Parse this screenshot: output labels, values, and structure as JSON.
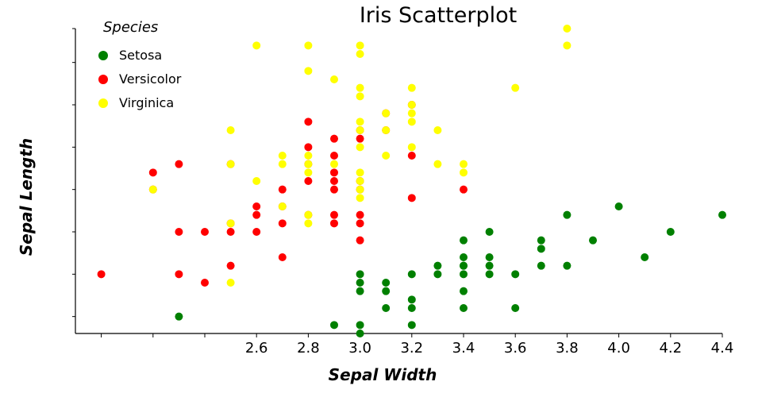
{
  "chart_data": {
    "type": "scatter",
    "title": "Iris Scatterplot",
    "xlabel": "Sepal Width",
    "ylabel": "Sepal Length",
    "xlim": [
      1.9,
      4.4
    ],
    "ylim": [
      4.3,
      7.9
    ],
    "x_ticks": [
      2.0,
      2.2,
      2.4,
      2.6,
      2.8,
      3.0,
      3.2,
      3.4,
      3.6,
      3.8,
      4.0,
      4.2,
      4.4
    ],
    "x_tick_labels": [
      "",
      "",
      "",
      "2.6",
      "2.8",
      "3.0",
      "3.2",
      "3.4",
      "3.6",
      "3.8",
      "4.0",
      "4.2",
      "4.4"
    ],
    "y_ticks": [
      4.5,
      5.0,
      5.5,
      6.0,
      6.5,
      7.0,
      7.5
    ],
    "grid": false,
    "legend": {
      "title": "Species",
      "placement": "top-left"
    },
    "series": [
      {
        "name": "Setosa",
        "color": "#008000",
        "points": [
          [
            2.3,
            4.5
          ],
          [
            2.9,
            4.4
          ],
          [
            3.0,
            4.4
          ],
          [
            3.0,
            4.3
          ],
          [
            3.2,
            4.4
          ],
          [
            3.1,
            4.6
          ],
          [
            3.2,
            4.6
          ],
          [
            3.2,
            4.7
          ],
          [
            3.4,
            4.6
          ],
          [
            3.6,
            4.6
          ],
          [
            3.0,
            4.8
          ],
          [
            3.1,
            4.8
          ],
          [
            3.4,
            4.8
          ],
          [
            3.0,
            4.9
          ],
          [
            3.1,
            4.9
          ],
          [
            3.6,
            5.0
          ],
          [
            3.4,
            5.0
          ],
          [
            3.0,
            5.0
          ],
          [
            3.2,
            5.0
          ],
          [
            3.3,
            5.0
          ],
          [
            3.4,
            5.1
          ],
          [
            3.5,
            5.0
          ],
          [
            3.3,
            5.1
          ],
          [
            3.4,
            5.1
          ],
          [
            3.5,
            5.1
          ],
          [
            3.7,
            5.1
          ],
          [
            3.8,
            5.1
          ],
          [
            3.4,
            5.2
          ],
          [
            3.5,
            5.2
          ],
          [
            4.1,
            5.2
          ],
          [
            3.7,
            5.3
          ],
          [
            3.4,
            5.4
          ],
          [
            3.7,
            5.4
          ],
          [
            3.9,
            5.4
          ],
          [
            3.5,
            5.5
          ],
          [
            4.2,
            5.5
          ],
          [
            3.8,
            5.7
          ],
          [
            4.4,
            5.7
          ],
          [
            4.0,
            5.8
          ]
        ]
      },
      {
        "name": "Versicolor",
        "color": "#ff0000",
        "points": [
          [
            2.0,
            5.0
          ],
          [
            2.3,
            5.0
          ],
          [
            2.4,
            4.9
          ],
          [
            2.5,
            5.1
          ],
          [
            2.3,
            5.5
          ],
          [
            2.4,
            5.5
          ],
          [
            2.5,
            5.5
          ],
          [
            2.6,
            5.5
          ],
          [
            2.7,
            5.2
          ],
          [
            3.0,
            5.4
          ],
          [
            2.5,
            5.6
          ],
          [
            2.7,
            5.6
          ],
          [
            2.9,
            5.6
          ],
          [
            3.0,
            5.6
          ],
          [
            2.6,
            5.7
          ],
          [
            2.8,
            5.7
          ],
          [
            2.9,
            5.7
          ],
          [
            3.0,
            5.7
          ],
          [
            2.2,
            6.0
          ],
          [
            2.6,
            5.8
          ],
          [
            2.7,
            5.8
          ],
          [
            2.7,
            6.0
          ],
          [
            2.9,
            6.0
          ],
          [
            3.0,
            6.0
          ],
          [
            3.2,
            5.9
          ],
          [
            3.4,
            6.0
          ],
          [
            2.2,
            6.2
          ],
          [
            2.3,
            6.3
          ],
          [
            2.8,
            6.1
          ],
          [
            2.9,
            6.1
          ],
          [
            3.0,
            6.1
          ],
          [
            2.9,
            6.2
          ],
          [
            2.5,
            6.3
          ],
          [
            2.8,
            6.3
          ],
          [
            2.9,
            6.4
          ],
          [
            3.2,
            6.4
          ],
          [
            2.8,
            6.5
          ],
          [
            3.0,
            6.6
          ],
          [
            2.9,
            6.6
          ],
          [
            3.1,
            6.7
          ],
          [
            2.8,
            6.8
          ],
          [
            3.1,
            6.9
          ],
          [
            3.2,
            7.0
          ],
          [
            3.0,
            6.7
          ]
        ]
      },
      {
        "name": "Virginica",
        "color": "#ffff00",
        "points": [
          [
            2.5,
            4.9
          ],
          [
            2.2,
            6.0
          ],
          [
            2.5,
            5.6
          ],
          [
            2.7,
            5.8
          ],
          [
            2.8,
            5.6
          ],
          [
            2.8,
            5.7
          ],
          [
            2.5,
            6.3
          ],
          [
            2.6,
            6.1
          ],
          [
            2.7,
            6.3
          ],
          [
            2.8,
            6.2
          ],
          [
            2.8,
            6.4
          ],
          [
            2.9,
            6.3
          ],
          [
            3.0,
            5.9
          ],
          [
            3.0,
            6.0
          ],
          [
            3.0,
            6.1
          ],
          [
            3.0,
            6.2
          ],
          [
            3.3,
            6.3
          ],
          [
            2.7,
            6.4
          ],
          [
            2.5,
            6.7
          ],
          [
            2.8,
            6.3
          ],
          [
            3.0,
            6.5
          ],
          [
            3.0,
            6.7
          ],
          [
            3.0,
            6.8
          ],
          [
            3.1,
            6.4
          ],
          [
            3.2,
            6.5
          ],
          [
            3.2,
            6.8
          ],
          [
            3.3,
            6.7
          ],
          [
            3.4,
            6.3
          ],
          [
            3.4,
            6.2
          ],
          [
            3.0,
            7.1
          ],
          [
            3.0,
            7.2
          ],
          [
            2.9,
            7.3
          ],
          [
            3.2,
            6.9
          ],
          [
            3.1,
            6.7
          ],
          [
            3.1,
            6.9
          ],
          [
            3.2,
            7.0
          ],
          [
            3.2,
            7.2
          ],
          [
            3.0,
            7.6
          ],
          [
            3.0,
            7.7
          ],
          [
            2.8,
            7.4
          ],
          [
            2.6,
            7.7
          ],
          [
            2.8,
            7.7
          ],
          [
            3.6,
            7.2
          ],
          [
            3.8,
            7.7
          ],
          [
            3.8,
            7.9
          ]
        ]
      }
    ]
  }
}
